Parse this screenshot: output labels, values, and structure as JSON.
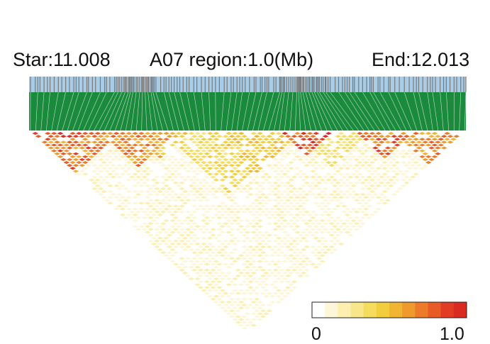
{
  "chart_data": {
    "type": "heatmap",
    "subtype": "linkage-disequilibrium-triangle",
    "header": {
      "start": "Star:11.008",
      "region": "A07 region:1.0(Mb)",
      "end": "End:12.013"
    },
    "region": {
      "chromosome": "A07",
      "start_mb": 11.008,
      "end_mb": 12.013,
      "length_mb": 1.0
    },
    "snp_track_colors": {
      "background": "#a9cde6",
      "marker": "#7a7a7a",
      "connector": "#1a8a3c"
    },
    "colorbar": {
      "min_label": "0",
      "max_label": "1.0",
      "range": [
        0,
        1.0
      ],
      "colors": [
        "#ffffff",
        "#fdf6d8",
        "#fcefb0",
        "#f9e58a",
        "#f6dc5c",
        "#f3cd3b",
        "#f2b433",
        "#ef9a2c",
        "#ec7a28",
        "#e85a26",
        "#e23d24",
        "#d92b22"
      ]
    },
    "ld_blocks": [
      {
        "from": 0.0,
        "to": 0.2,
        "r2": 0.78
      },
      {
        "from": 0.05,
        "to": 0.14,
        "r2": 0.92
      },
      {
        "from": 0.15,
        "to": 0.33,
        "r2": 0.7
      },
      {
        "from": 0.22,
        "to": 0.36,
        "r2": 0.55
      },
      {
        "from": 0.3,
        "to": 0.6,
        "r2": 0.42
      },
      {
        "from": 0.4,
        "to": 0.62,
        "r2": 0.48
      },
      {
        "from": 0.56,
        "to": 0.69,
        "r2": 0.95
      },
      {
        "from": 0.6,
        "to": 0.78,
        "r2": 0.35
      },
      {
        "from": 0.74,
        "to": 0.88,
        "r2": 0.82
      },
      {
        "from": 0.82,
        "to": 1.0,
        "r2": 0.72
      }
    ]
  }
}
